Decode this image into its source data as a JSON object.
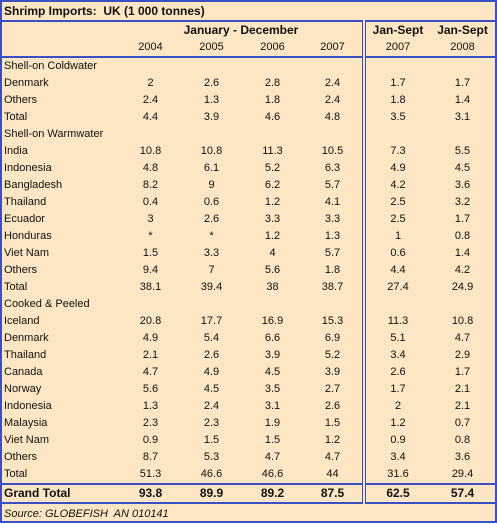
{
  "title": "Shrimp Imports:  UK (1 000 tonnes)",
  "header": {
    "group_1": "January - December",
    "group_2_col_1": "Jan-Sept",
    "group_2_col_2": "Jan-Sept"
  },
  "years": [
    "2004",
    "2005",
    "2006",
    "2007",
    "2007",
    "2008"
  ],
  "sections": [
    {
      "label": "Shell-on Coldwater",
      "rows": [
        {
          "name": "Denmark",
          "values": [
            "2",
            "2.6",
            "2.8",
            "2.4",
            "1.7",
            "1.7"
          ]
        },
        {
          "name": "Others",
          "values": [
            "2.4",
            "1.3",
            "1.8",
            "2.4",
            "1.8",
            "1.4"
          ]
        },
        {
          "name": "Total",
          "values": [
            "4.4",
            "3.9",
            "4.6",
            "4.8",
            "3.5",
            "3.1"
          ]
        }
      ]
    },
    {
      "label": "Shell-on Warmwater",
      "rows": [
        {
          "name": "India",
          "values": [
            "10.8",
            "10.8",
            "11.3",
            "10.5",
            "7.3",
            "5.5"
          ]
        },
        {
          "name": "Indonesia",
          "values": [
            "4.8",
            "6.1",
            "5.2",
            "6.3",
            "4.9",
            "4.5"
          ]
        },
        {
          "name": "Bangladesh",
          "values": [
            "8.2",
            "9",
            "6.2",
            "5.7",
            "4.2",
            "3.6"
          ]
        },
        {
          "name": "Thailand",
          "values": [
            "0.4",
            "0.6",
            "1.2",
            "4.1",
            "2.5",
            "3.2"
          ]
        },
        {
          "name": "Ecuador",
          "values": [
            "3",
            "2.6",
            "3.3",
            "3.3",
            "2.5",
            "1.7"
          ]
        },
        {
          "name": "Honduras",
          "values": [
            "*",
            "*",
            "1.2",
            "1.3",
            "1",
            "0.8"
          ]
        },
        {
          "name": "Viet Nam",
          "values": [
            "1.5",
            "3.3",
            "4",
            "5.7",
            "0.6",
            "1.4"
          ]
        },
        {
          "name": "Others",
          "values": [
            "9.4",
            "7",
            "5.6",
            "1.8",
            "4.4",
            "4.2"
          ]
        },
        {
          "name": "Total",
          "values": [
            "38.1",
            "39.4",
            "38",
            "38.7",
            "27.4",
            "24.9"
          ]
        }
      ]
    },
    {
      "label": "Cooked & Peeled",
      "rows": [
        {
          "name": "Iceland",
          "values": [
            "20.8",
            "17.7",
            "16.9",
            "15.3",
            "11.3",
            "10.8"
          ]
        },
        {
          "name": "Denmark",
          "values": [
            "4.9",
            "5.4",
            "6.6",
            "6.9",
            "5.1",
            "4.7"
          ]
        },
        {
          "name": "Thailand",
          "values": [
            "2.1",
            "2.6",
            "3.9",
            "5.2",
            "3.4",
            "2.9"
          ]
        },
        {
          "name": "Canada",
          "values": [
            "4.7",
            "4.9",
            "4.5",
            "3.9",
            "2.6",
            "1.7"
          ]
        },
        {
          "name": "Norway",
          "values": [
            "5.6",
            "4.5",
            "3.5",
            "2.7",
            "1.7",
            "2.1"
          ]
        },
        {
          "name": "Indonesia",
          "values": [
            "1.3",
            "2.4",
            "3.1",
            "2.6",
            "2",
            "2.1"
          ]
        },
        {
          "name": "Malaysia",
          "values": [
            "2.3",
            "2.3",
            "1.9",
            "1.5",
            "1.2",
            "0.7"
          ]
        },
        {
          "name": "Viet Nam",
          "values": [
            "0.9",
            "1.5",
            "1.5",
            "1.2",
            "0.9",
            "0.8"
          ]
        },
        {
          "name": "Others",
          "values": [
            "8.7",
            "5.3",
            "4.7",
            "4.7",
            "3.4",
            "3.6"
          ]
        },
        {
          "name": "Total",
          "values": [
            "51.3",
            "46.6",
            "46.6",
            "44",
            "31.6",
            "29.4"
          ]
        }
      ]
    }
  ],
  "grand_total": {
    "name": "Grand Total",
    "values": [
      "93.8",
      "89.9",
      "89.2",
      "87.5",
      "62.5",
      "57.4"
    ]
  },
  "source": "Source: GLOBEFISH  AN 010141"
}
